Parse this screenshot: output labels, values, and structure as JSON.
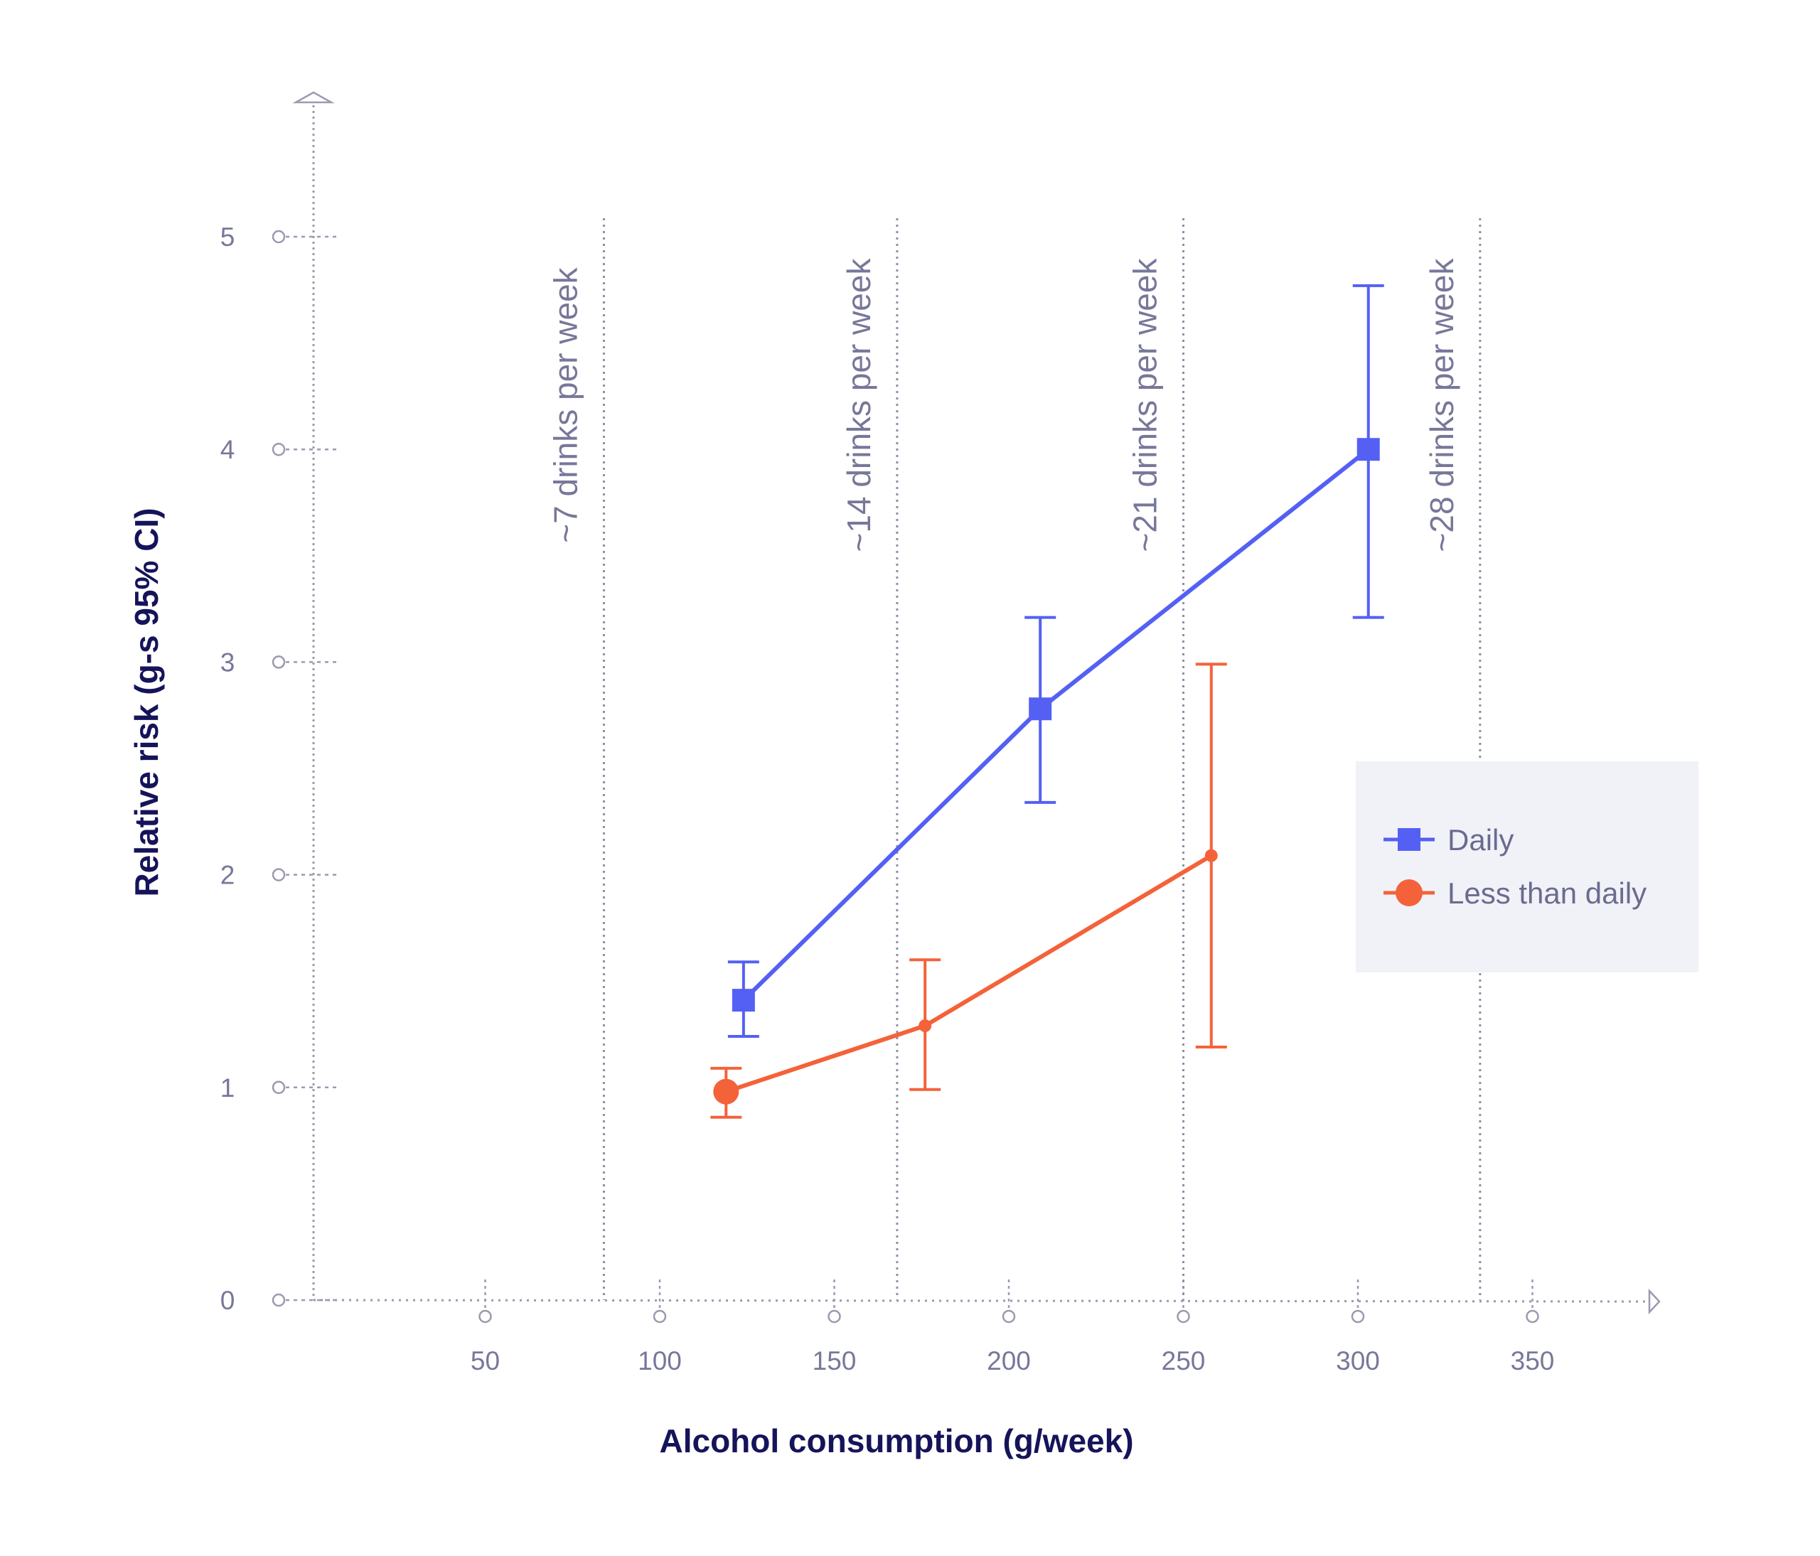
{
  "chart_data": {
    "type": "line",
    "xlabel": "Alcohol consumption (g/week)",
    "ylabel": "Relative risk (g-s 95% CI)",
    "xlim": [
      0,
      385
    ],
    "ylim": [
      0,
      5.5
    ],
    "x_ticks": [
      50,
      100,
      150,
      200,
      250,
      300,
      350
    ],
    "y_ticks": [
      0,
      1,
      2,
      3,
      4,
      5
    ],
    "reference_lines": [
      {
        "x": 84,
        "label": "~7  drinks per week"
      },
      {
        "x": 168,
        "label": "~14 drinks per week"
      },
      {
        "x": 250,
        "label": "~21 drinks per week"
      },
      {
        "x": 335,
        "label": "~28 drinks per week"
      }
    ],
    "legend_position": "right",
    "series": [
      {
        "name": "Daily",
        "color": "#5460f4",
        "marker": "square",
        "points": [
          {
            "x": 124,
            "y": 1.41,
            "lo": 1.24,
            "hi": 1.59
          },
          {
            "x": 209,
            "y": 2.78,
            "lo": 2.34,
            "hi": 3.21
          },
          {
            "x": 303,
            "y": 4.0,
            "lo": 3.21,
            "hi": 4.77
          }
        ]
      },
      {
        "name": "Less than daily",
        "color": "#f4623a",
        "marker": "circle",
        "points": [
          {
            "x": 119,
            "y": 0.98,
            "lo": 0.86,
            "hi": 1.09
          },
          {
            "x": 176,
            "y": 1.29,
            "lo": 0.99,
            "hi": 1.6
          },
          {
            "x": 258,
            "y": 2.09,
            "lo": 1.19,
            "hi": 2.99
          }
        ]
      }
    ]
  }
}
